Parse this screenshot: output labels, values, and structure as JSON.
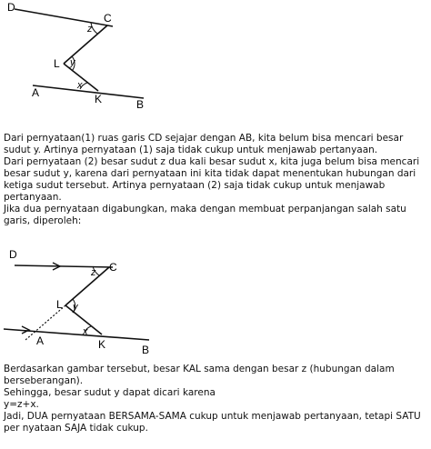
{
  "figure1": {
    "labels": {
      "d": "D",
      "c": "C",
      "z": "z",
      "l": "L",
      "y": "y",
      "x": "x",
      "a": "A",
      "k": "K",
      "b": "B"
    }
  },
  "text1": {
    "p1": "Dari pernyataan(1) ruas garis CD sejajar dengan AB, kita belum bisa mencari besar sudut y. Artinya pernyataan (1) saja tidak cukup untuk menjawab pertanyaan.",
    "p2": "Dari pernyataan (2) besar sudut z dua kali besar sudut x, kita juga belum bisa mencari besar sudut y, karena dari pernyataan ini kita tidak dapat menentukan hubungan dari ketiga sudut tersebut. Artinya pernyataan (2) saja tidak cukup untuk menjawab pertanyaan.",
    "p3": "Jika dua pernyataan digabungkan, maka dengan membuat perpanjangan salah satu garis, diperoleh:"
  },
  "figure2": {
    "labels": {
      "d": "D",
      "c": "C",
      "z": "z",
      "l": "L",
      "y": "y",
      "x": "x",
      "a": "A",
      "k": "K",
      "b": "B"
    }
  },
  "text2": {
    "p1": "Berdasarkan gambar tersebut, besar KAL sama dengan besar z (hubungan dalam berseberangan).",
    "p2": "Sehingga, besar sudut y dapat dicari karena",
    "p3": "y=z+x.",
    "p4": "Jadi, DUA pernyataan BERSAMA-SAMA cukup untuk menjawab pertanyaan, tetapi SATU per nyataan SAJA tidak cukup."
  }
}
